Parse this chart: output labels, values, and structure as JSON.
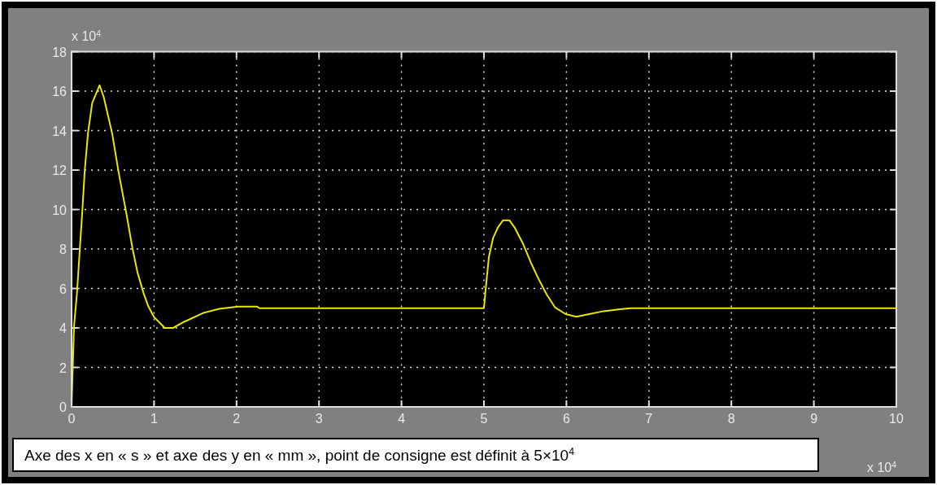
{
  "chart_data": {
    "type": "line",
    "xlim": [
      0,
      10
    ],
    "ylim": [
      0,
      18
    ],
    "xticks": [
      0,
      1,
      2,
      3,
      4,
      5,
      6,
      7,
      8,
      9,
      10
    ],
    "yticks": [
      0,
      2,
      4,
      6,
      8,
      10,
      12,
      14,
      16,
      18
    ],
    "grid": true,
    "marker": "none",
    "line_style": "solid",
    "annotations": [
      "x 10$^{4}$",
      "x 10$^{4}$",
      "Axe des x en « s » et axe des y en « mm », point de consigne est définit à 5×10$^{4}$"
    ],
    "series": [
      {
        "color": "#e8e800",
        "x": [
          0,
          0.01,
          0.03,
          0.066,
          0.1,
          0.13,
          0.16,
          0.2,
          0.25,
          0.34,
          0.39,
          0.49,
          0.57,
          0.66,
          0.74,
          0.8,
          0.87,
          0.93,
          1.0,
          1.13,
          1.23,
          1.36,
          1.59,
          1.79,
          2.02,
          2.25,
          2.28,
          5.0,
          5.02,
          5.06,
          5.11,
          5.17,
          5.23,
          5.31,
          5.37,
          5.47,
          5.57,
          5.66,
          5.76,
          5.86,
          5.99,
          6.12,
          6.25,
          6.45,
          6.65,
          6.78,
          10
        ],
        "values": [
          0,
          1.4,
          4.1,
          5.8,
          8.0,
          9.9,
          12.0,
          13.9,
          15.4,
          16.3,
          15.7,
          13.9,
          11.9,
          9.9,
          8.0,
          6.8,
          5.8,
          5.1,
          4.55,
          4.0,
          4.0,
          4.3,
          4.75,
          4.97,
          5.08,
          5.08,
          5.0,
          5.0,
          5.93,
          7.6,
          8.55,
          9.1,
          9.45,
          9.45,
          9.1,
          8.3,
          7.3,
          6.5,
          5.7,
          5.05,
          4.7,
          4.57,
          4.68,
          4.85,
          4.95,
          5.0,
          5.0
        ]
      }
    ]
  }
}
